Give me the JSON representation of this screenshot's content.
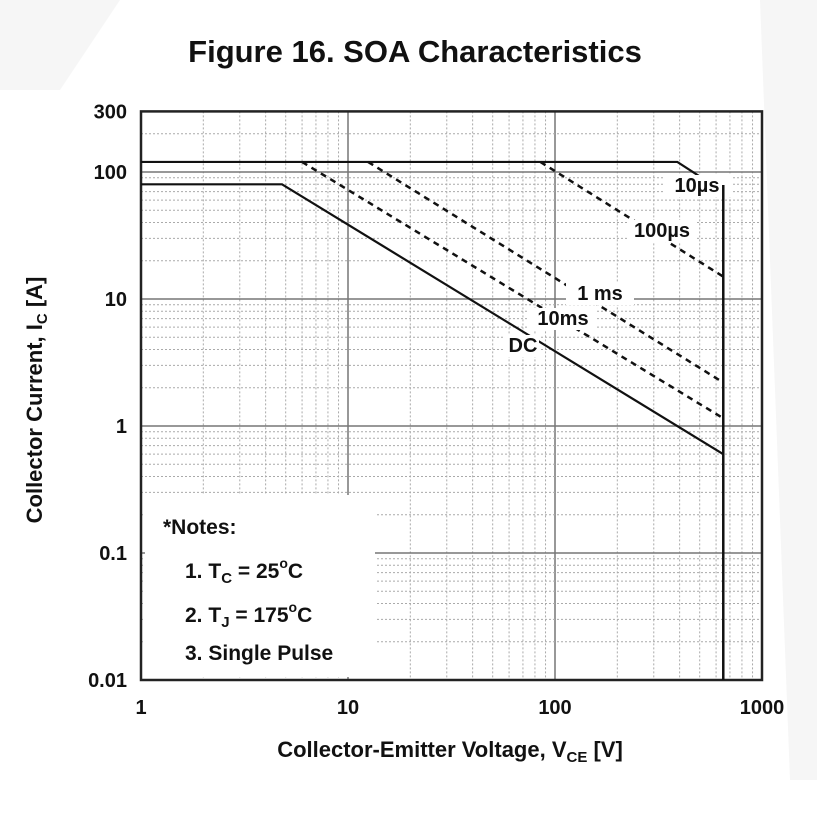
{
  "chart_data": {
    "type": "line",
    "title": "Figure 16. SOA Characteristics",
    "xlabel": {
      "text": "Collector-Emitter Voltage, V",
      "sub": "CE",
      "suffix": " [V]"
    },
    "ylabel": {
      "text": "Collector Current, I",
      "sub": "C",
      "suffix": " [A]"
    },
    "x_scale": "log",
    "y_scale": "log",
    "xlim": [
      1,
      1000
    ],
    "ylim": [
      0.01,
      300
    ],
    "x_ticks": [
      "1",
      "10",
      "100",
      "1000"
    ],
    "y_ticks": [
      "300",
      "100",
      "10",
      "1",
      "0.1",
      "0.01"
    ],
    "grid": true,
    "voltage_limit": 650,
    "series": [
      {
        "name": "10µs",
        "style": "solid",
        "points": [
          [
            1,
            120
          ],
          [
            390,
            120
          ],
          [
            650,
            70
          ]
        ]
      },
      {
        "name": "100µs",
        "style": "dashed",
        "points": [
          [
            85,
            120
          ],
          [
            650,
            15
          ]
        ]
      },
      {
        "name": "1 ms",
        "style": "dashed",
        "points": [
          [
            12.5,
            120
          ],
          [
            650,
            2.2
          ]
        ]
      },
      {
        "name": "10ms",
        "style": "dashed",
        "points": [
          [
            6,
            120
          ],
          [
            650,
            1.15
          ]
        ]
      },
      {
        "name": "DC",
        "style": "solid",
        "points": [
          [
            1,
            80
          ],
          [
            4.8,
            80
          ],
          [
            650,
            0.6
          ]
        ]
      }
    ],
    "notes": {
      "heading": "*Notes:",
      "items": [
        {
          "prefix": "1. T",
          "sub": "C",
          "mid": " = 25",
          "sup": "o",
          "suffix": "C"
        },
        {
          "prefix": "2. T",
          "sub": "J",
          "mid": " = 175",
          "sup": "o",
          "suffix": "C"
        },
        {
          "prefix": "3. Single Pulse",
          "sub": "",
          "mid": "",
          "sup": "",
          "suffix": ""
        }
      ]
    }
  }
}
